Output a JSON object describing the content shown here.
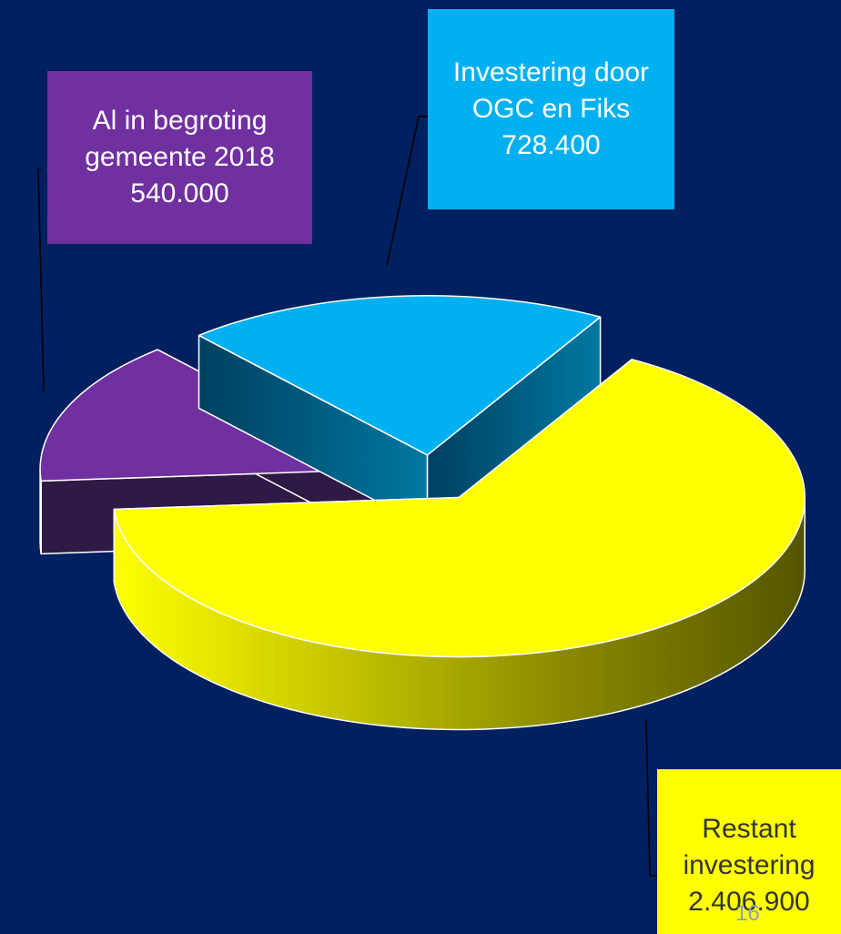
{
  "chart_data": {
    "type": "pie",
    "categories": [
      "Restant investering",
      "Al in begroting gemeente 2018",
      "Investering door OGC en Fiks"
    ],
    "values": [
      2406900,
      540000,
      728400
    ],
    "value_labels": [
      "2.406.900",
      "540.000",
      "728.400"
    ],
    "colors": [
      "#ffff00",
      "#7030a0",
      "#00b0f0"
    ]
  },
  "page_number": "16"
}
